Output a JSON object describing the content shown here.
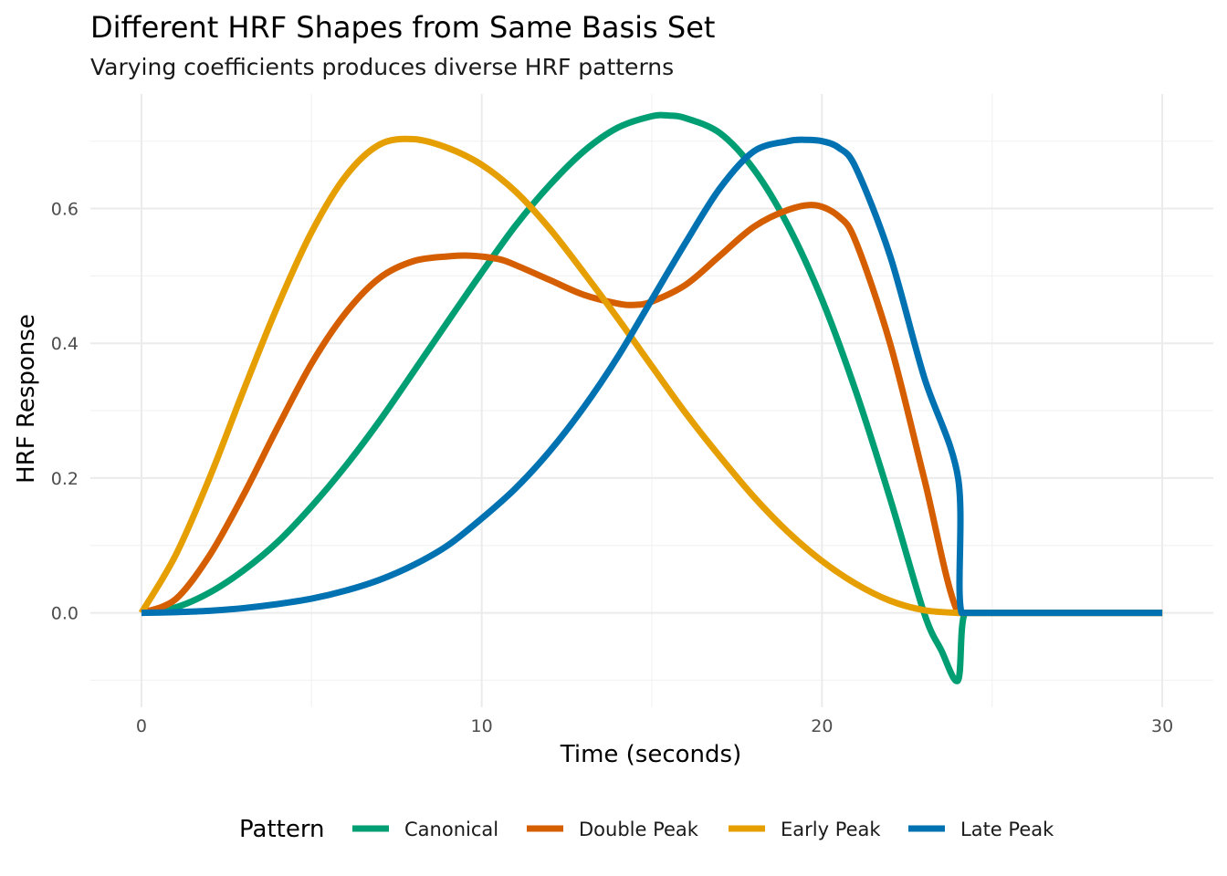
{
  "chart_data": {
    "type": "line",
    "title": "Different HRF Shapes from Same Basis Set",
    "subtitle": "Varying coefficients produces diverse HRF patterns",
    "xlabel": "Time (seconds)",
    "ylabel": "HRF Response",
    "xlim": [
      -1.5,
      31.5
    ],
    "ylim": [
      -0.14,
      0.77
    ],
    "x_ticks": [
      0,
      10,
      20,
      30
    ],
    "x_tick_labels": [
      "0",
      "10",
      "20",
      "30"
    ],
    "y_ticks": [
      0.0,
      0.2,
      0.4,
      0.6
    ],
    "y_tick_labels": [
      "0.0",
      "0.2",
      "0.4",
      "0.6"
    ],
    "grid": true,
    "legend_position": "bottom",
    "legend_title": "Pattern",
    "series": [
      {
        "name": "Canonical",
        "color": "#009E73",
        "x": [
          0,
          1,
          2,
          3,
          4,
          5,
          6,
          7,
          8,
          9,
          10,
          11,
          12,
          13,
          14,
          15,
          15.5,
          16,
          17,
          18,
          19,
          20,
          21,
          22,
          23,
          23.5,
          24,
          24.2,
          25,
          26,
          27,
          28,
          29,
          30
        ],
        "y": [
          0.0,
          0.008,
          0.03,
          0.063,
          0.105,
          0.158,
          0.218,
          0.285,
          0.358,
          0.432,
          0.505,
          0.575,
          0.635,
          0.685,
          0.72,
          0.737,
          0.738,
          0.734,
          0.712,
          0.658,
          0.575,
          0.465,
          0.328,
          0.17,
          0.0,
          -0.055,
          -0.1,
          0.0,
          0.0,
          0.0,
          0.0,
          0.0,
          0.0,
          0.0
        ]
      },
      {
        "name": "Double Peak",
        "color": "#D55E00",
        "x": [
          0,
          1,
          2,
          3,
          4,
          5,
          6,
          7,
          8,
          9,
          9.7,
          10.5,
          11,
          12,
          13,
          14,
          14.5,
          15,
          16,
          17,
          18,
          19,
          19.8,
          20.5,
          21,
          22,
          23,
          24,
          25,
          26,
          27,
          28,
          29,
          30
        ],
        "y": [
          0.0,
          0.02,
          0.085,
          0.175,
          0.275,
          0.37,
          0.445,
          0.497,
          0.522,
          0.529,
          0.53,
          0.525,
          0.516,
          0.494,
          0.472,
          0.459,
          0.457,
          0.462,
          0.487,
          0.53,
          0.573,
          0.598,
          0.605,
          0.588,
          0.55,
          0.4,
          0.2,
          0.0,
          0.0,
          0.0,
          0.0,
          0.0,
          0.0,
          0.0
        ]
      },
      {
        "name": "Early Peak",
        "color": "#E69F00",
        "x": [
          0,
          1,
          2,
          3,
          4,
          5,
          6,
          7,
          8,
          9,
          10,
          11,
          12,
          13,
          14,
          15,
          16,
          17,
          18,
          19,
          20,
          21,
          22,
          23,
          24,
          25,
          26,
          27,
          28,
          29,
          30
        ],
        "y": [
          0.0,
          0.085,
          0.2,
          0.33,
          0.455,
          0.565,
          0.648,
          0.695,
          0.703,
          0.69,
          0.665,
          0.625,
          0.57,
          0.505,
          0.437,
          0.366,
          0.296,
          0.232,
          0.172,
          0.12,
          0.077,
          0.043,
          0.018,
          0.004,
          0.0,
          0.0,
          0.0,
          0.0,
          0.0,
          0.0,
          0.0
        ]
      },
      {
        "name": "Late Peak",
        "color": "#0072B2",
        "x": [
          0,
          1,
          2,
          3,
          4,
          5,
          6,
          7,
          8,
          9,
          10,
          11,
          12,
          13,
          14,
          15,
          16,
          17,
          18,
          19,
          19.5,
          20,
          20.5,
          21,
          22,
          23,
          24,
          24.1,
          25,
          26,
          27,
          28,
          29,
          30
        ],
        "y": [
          0.0,
          0.001,
          0.003,
          0.007,
          0.013,
          0.021,
          0.033,
          0.049,
          0.071,
          0.1,
          0.14,
          0.185,
          0.24,
          0.305,
          0.38,
          0.465,
          0.55,
          0.63,
          0.685,
          0.7,
          0.702,
          0.7,
          0.69,
          0.66,
          0.53,
          0.35,
          0.2,
          0.0,
          0.0,
          0.0,
          0.0,
          0.0,
          0.0,
          0.0
        ]
      }
    ]
  }
}
